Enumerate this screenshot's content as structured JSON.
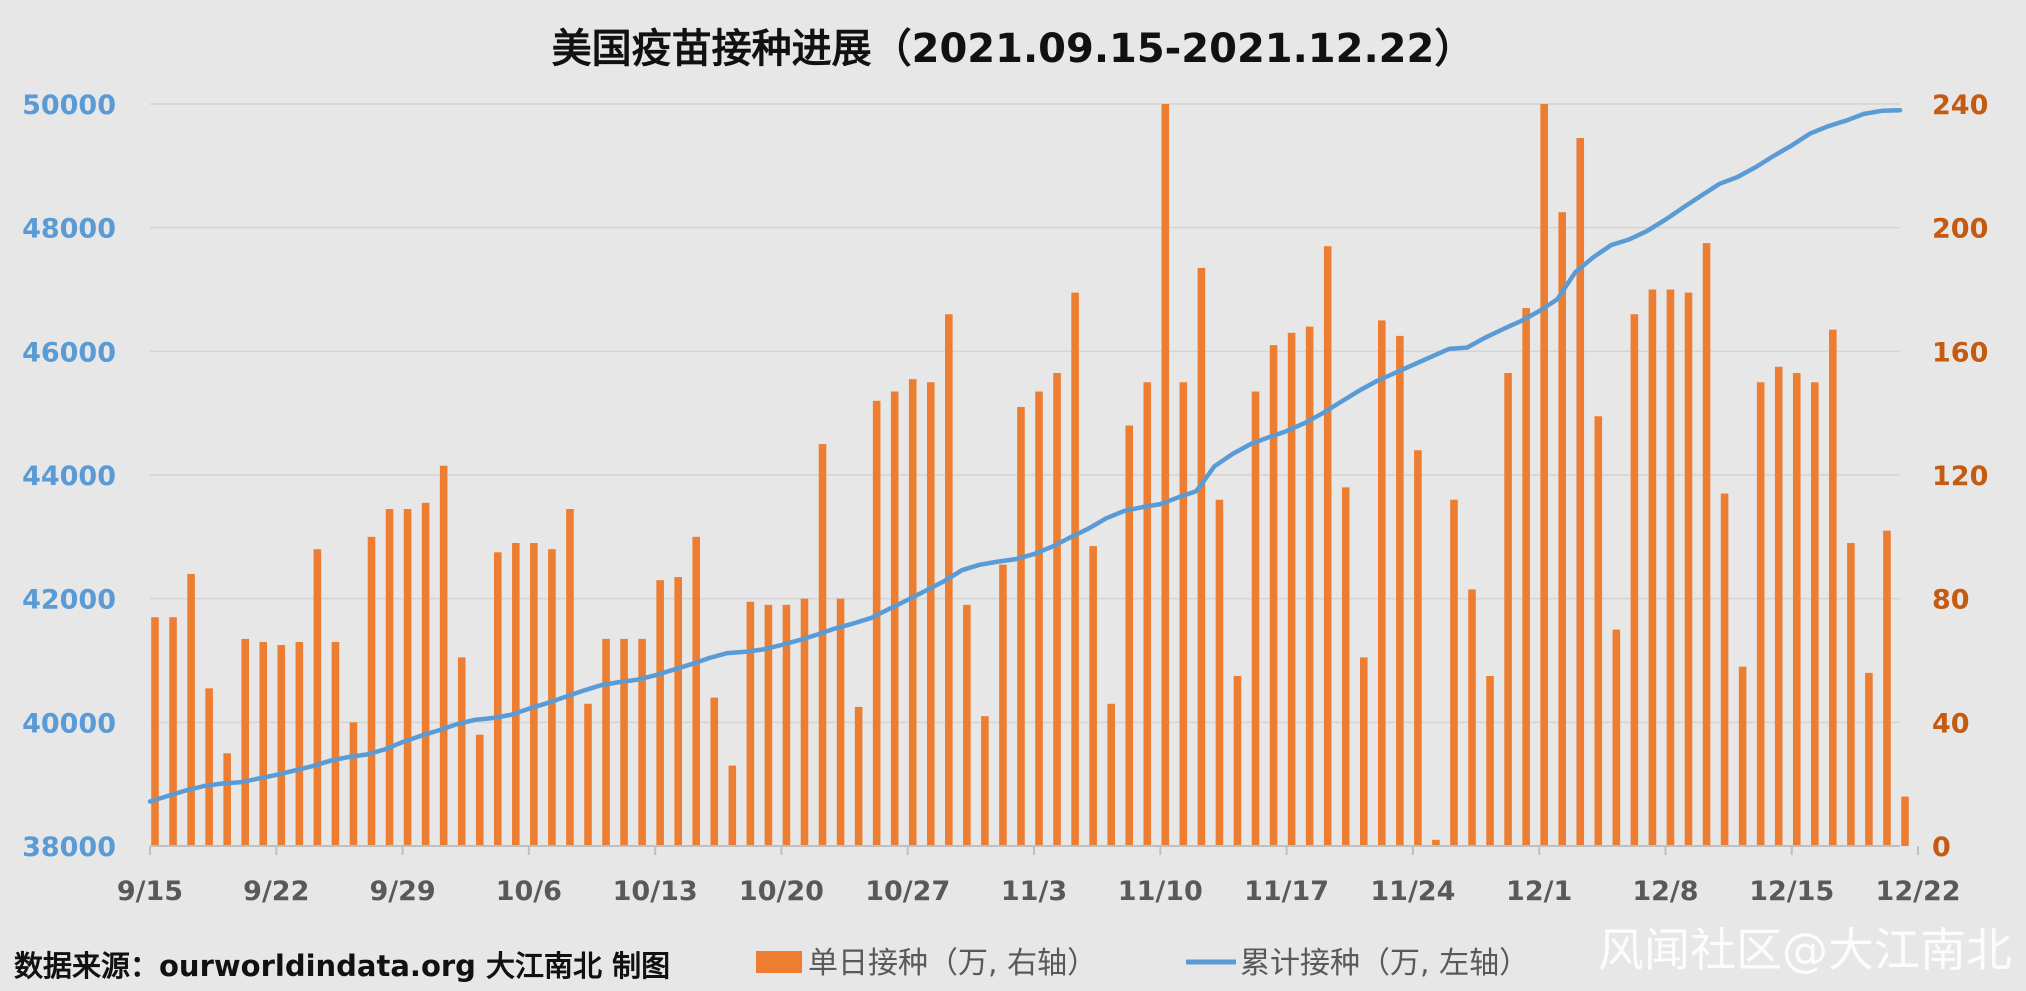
{
  "chart_data": {
    "type": "bar",
    "title": "美国疫苗接种进展（2021.09.15-2021.12.22）",
    "x_tick_labels": [
      "9/15",
      "9/22",
      "9/29",
      "10/6",
      "10/13",
      "10/20",
      "10/27",
      "11/3",
      "11/10",
      "11/17",
      "11/24",
      "12/1",
      "12/8",
      "12/15",
      "12/22"
    ],
    "y_left": {
      "min": 38000,
      "max": 50000,
      "ticks": [
        38000,
        40000,
        42000,
        44000,
        46000,
        48000,
        50000
      ]
    },
    "y_right": {
      "min": 0,
      "max": 240,
      "ticks": [
        0,
        40,
        80,
        120,
        160,
        200,
        240
      ]
    },
    "grid": true,
    "legend_position": "bottom",
    "series": [
      {
        "name": "单日接种（万, 右轴）",
        "kind": "bar",
        "axis": "right",
        "color": "#ed7d31",
        "values": [
          74,
          74,
          88,
          51,
          30,
          67,
          66,
          65,
          66,
          96,
          66,
          40,
          100,
          109,
          109,
          111,
          123,
          61,
          36,
          95,
          98,
          98,
          96,
          109,
          46,
          67,
          67,
          67,
          86,
          87,
          100,
          48,
          26,
          79,
          78,
          78,
          80,
          130,
          80,
          45,
          144,
          147,
          151,
          150,
          172,
          78,
          42,
          91,
          142,
          147,
          153,
          179,
          97,
          46,
          136,
          150,
          240,
          150,
          187,
          112,
          55,
          147,
          162,
          166,
          168,
          194,
          116,
          61,
          170,
          165,
          128,
          2,
          112,
          83,
          55,
          153,
          174,
          240,
          205,
          229,
          139,
          70,
          172,
          180,
          180,
          179,
          195,
          114,
          58,
          150,
          155,
          153,
          150,
          167,
          98,
          56,
          102,
          16
        ]
      },
      {
        "name": "累计接种（万, 左轴）",
        "kind": "line",
        "axis": "left",
        "color": "#5b9bd5",
        "values": [
          38720,
          38810,
          38900,
          38970,
          39010,
          39030,
          39090,
          39150,
          39220,
          39290,
          39380,
          39440,
          39480,
          39560,
          39680,
          39780,
          39870,
          39970,
          40040,
          40070,
          40120,
          40220,
          40310,
          40410,
          40510,
          40600,
          40650,
          40690,
          40760,
          40850,
          40940,
          41040,
          41120,
          41140,
          41180,
          41250,
          41330,
          41420,
          41520,
          41600,
          41690,
          41840,
          41980,
          42130,
          42280,
          42460,
          42550,
          42600,
          42640,
          42720,
          42840,
          42990,
          43130,
          43300,
          43420,
          43480,
          43530,
          43640,
          43740,
          44140,
          44340,
          44500,
          44610,
          44710,
          44840,
          45000,
          45180,
          45360,
          45520,
          45650,
          45780,
          45910,
          46040,
          46060,
          46220,
          46360,
          46490,
          46650,
          46840,
          47280,
          47520,
          47720,
          47810,
          47950,
          48130,
          48330,
          48520,
          48710,
          48820,
          48980,
          49160,
          49330,
          49520,
          49640,
          49730,
          49840,
          49890,
          49900
        ]
      }
    ],
    "source_text": "数据来源：ourworldindata.org 大江南北 制图",
    "watermark": "风闻社区@大江南北"
  }
}
